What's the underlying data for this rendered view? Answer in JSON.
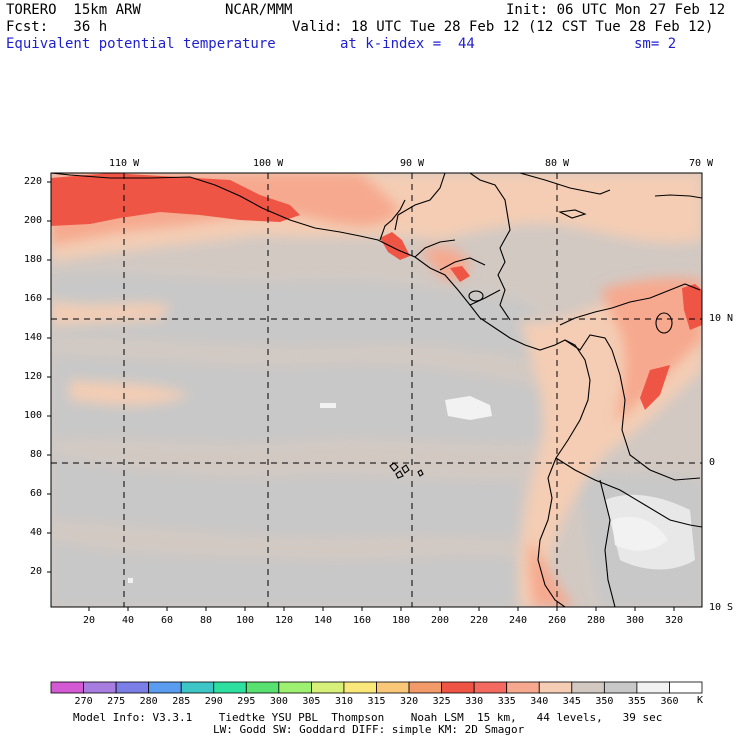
{
  "header": {
    "model_name": "TORERO  15km ARW",
    "org": "NCAR/MMM",
    "init": "Init: 06 UTC Mon 27 Feb 12",
    "fcst": "Fcst:   36 h",
    "valid": "Valid: 18 UTC Tue 28 Feb 12 (12 CST Tue 28 Feb 12)",
    "field": "Equivalent potential temperature",
    "level": "at k-index =  44",
    "smooth": "sm= 2"
  },
  "map": {
    "lon_labels": [
      "110 W",
      "100 W",
      "90 W",
      "80 W",
      "70 W"
    ],
    "lat_labels": [
      "10 N",
      "0",
      "10 S"
    ],
    "y_ticks": [
      "20",
      "40",
      "60",
      "80",
      "100",
      "120",
      "140",
      "160",
      "180",
      "200",
      "220"
    ],
    "x_ticks": [
      "20",
      "40",
      "60",
      "80",
      "100",
      "120",
      "140",
      "160",
      "180",
      "200",
      "220",
      "240",
      "260",
      "280",
      "300",
      "320"
    ],
    "background_color": "#d2c9c3",
    "gridline_color": "#000000"
  },
  "colorbar": {
    "values": [
      "270",
      "275",
      "280",
      "285",
      "290",
      "295",
      "300",
      "305",
      "310",
      "315",
      "320",
      "325",
      "330",
      "335",
      "340",
      "345",
      "350",
      "355",
      "360"
    ],
    "unit": "K",
    "colors": [
      "#d35ad3",
      "#a77ee0",
      "#7c7ee8",
      "#5a9cf0",
      "#3ec6c6",
      "#2ee0a0",
      "#58e070",
      "#9ef070",
      "#d6f07a",
      "#fbe87a",
      "#f8c878",
      "#f39a6a",
      "#ef5545",
      "#f46a60",
      "#f6a98e",
      "#f4cdb4",
      "#d2c9c3",
      "#c8c8c8",
      "#f2f2f2",
      "#ffffff"
    ]
  },
  "footer": {
    "line1": "Model Info: V3.3.1    Tiedtke YSU PBL  Thompson    Noah LSM  15 km,   44 levels,   39 sec",
    "line2": "LW: Godd SW: Goddard DIFF: simple KM: 2D Smagor"
  }
}
